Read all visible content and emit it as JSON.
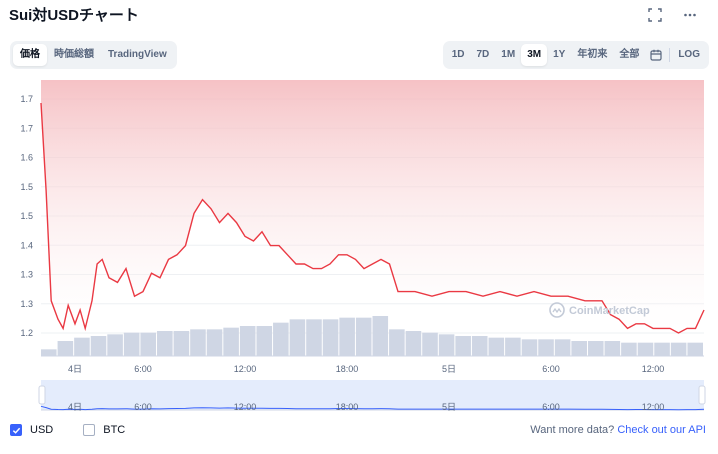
{
  "header": {
    "title": "Sui対USDチャート"
  },
  "view_toggle": {
    "items": [
      "価格",
      "時価総額",
      "TradingView"
    ],
    "active": 0
  },
  "range": {
    "items": [
      "1D",
      "7D",
      "1M",
      "3M",
      "1Y",
      "年初来",
      "全部"
    ],
    "active": 3,
    "log_label": "LOG"
  },
  "watermark": "CoinMarketCap",
  "colors": {
    "line": "#ea3943",
    "fill_top": "#f4b7bb",
    "volume": "#cfd6e4",
    "accent": "#3861fb",
    "navigator_fill": "#e4ecfc"
  },
  "legend": {
    "usd": "USD",
    "btc": "BTC",
    "usd_checked": true,
    "btc_checked": false
  },
  "api": {
    "text": "Want more data?",
    "link": "Check out our API"
  },
  "chart_data": {
    "type": "area",
    "y_tick_labels": [
      "1.7",
      "1.7",
      "1.6",
      "1.5",
      "1.5",
      "1.4",
      "1.3",
      "1.3",
      "1.2"
    ],
    "ylim": [
      1.16,
      1.76
    ],
    "x_tick_labels": [
      "4日",
      "6:00",
      "12:00",
      "18:00",
      "5日",
      "6:00",
      "12:00"
    ],
    "x_hours_range": [
      0,
      39
    ],
    "x_tick_hours": [
      2,
      6,
      12,
      18,
      24,
      30,
      36
    ],
    "grid": true,
    "legend": "bottom-left",
    "series": [
      {
        "x_hours": [
          0,
          0.3,
          0.6,
          1.0,
          1.3,
          1.6,
          2.0,
          2.3,
          2.6,
          3.0,
          3.3,
          3.6,
          4.0,
          4.5,
          5.0,
          5.5,
          6.0,
          6.5,
          7.0,
          7.5,
          8.0,
          8.5,
          9.0,
          9.5,
          10.0,
          10.5,
          11.0,
          11.5,
          12.0,
          12.5,
          13.0,
          13.5,
          14.0,
          14.5,
          15.0,
          15.5,
          16.0,
          16.5,
          17.0,
          17.5,
          18.0,
          18.5,
          19.0,
          19.5,
          20.0,
          20.5,
          21.0,
          22.0,
          23.0,
          24.0,
          25.0,
          26.0,
          27.0,
          28.0,
          29.0,
          30.0,
          31.0,
          32.0,
          33.0,
          33.5,
          34.0,
          34.5,
          35.0,
          35.5,
          36.0,
          36.5,
          37.0,
          37.5,
          38.0,
          38.5,
          39.0
        ],
        "values": [
          1.71,
          1.52,
          1.28,
          1.24,
          1.22,
          1.27,
          1.23,
          1.26,
          1.22,
          1.28,
          1.36,
          1.37,
          1.33,
          1.32,
          1.35,
          1.29,
          1.3,
          1.34,
          1.33,
          1.37,
          1.38,
          1.4,
          1.47,
          1.5,
          1.48,
          1.45,
          1.47,
          1.45,
          1.42,
          1.41,
          1.43,
          1.4,
          1.4,
          1.38,
          1.36,
          1.36,
          1.35,
          1.35,
          1.36,
          1.38,
          1.38,
          1.37,
          1.35,
          1.36,
          1.37,
          1.36,
          1.3,
          1.3,
          1.29,
          1.3,
          1.3,
          1.29,
          1.3,
          1.29,
          1.3,
          1.29,
          1.29,
          1.28,
          1.28,
          1.25,
          1.24,
          1.22,
          1.23,
          1.23,
          1.22,
          1.22,
          1.22,
          1.21,
          1.22,
          1.22,
          1.26
        ]
      },
      {
        "x_hours": [
          0,
          1,
          2,
          3,
          4,
          5,
          6,
          7,
          8,
          9,
          10,
          11,
          12,
          13,
          14,
          15,
          16,
          17,
          18,
          19,
          20,
          21,
          22,
          23,
          24,
          25,
          26,
          27,
          28,
          29,
          30,
          31,
          32,
          33,
          34,
          35,
          36,
          37,
          38,
          39
        ],
        "volume": [
          4,
          9,
          11,
          12,
          13,
          14,
          14,
          15,
          15,
          16,
          16,
          17,
          18,
          18,
          20,
          22,
          22,
          22,
          23,
          23,
          24,
          16,
          15,
          14,
          13,
          12,
          12,
          11,
          11,
          10,
          10,
          10,
          9,
          9,
          9,
          8,
          8,
          8,
          8,
          8
        ]
      }
    ]
  }
}
